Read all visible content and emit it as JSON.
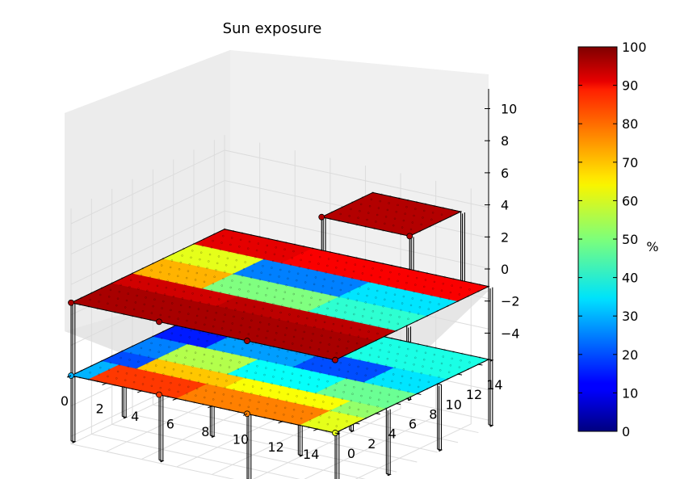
{
  "chart_data": {
    "type": "scatter",
    "projection": "3d",
    "title": "Sun exposure",
    "xlabel": "",
    "ylabel": "",
    "zlabel": "",
    "xlim": [
      0,
      15
    ],
    "ylim": [
      0,
      15
    ],
    "zlim": [
      -4.5,
      11
    ],
    "x_ticks": [
      0,
      2,
      4,
      6,
      8,
      10,
      12,
      14
    ],
    "y_ticks": [
      0,
      2,
      4,
      6,
      8,
      10,
      12,
      14
    ],
    "z_ticks": [
      -4,
      -2,
      0,
      2,
      4,
      6,
      8,
      10
    ],
    "x_tick_labels": [
      "0",
      "2",
      "4",
      "6",
      "8",
      "10",
      "12",
      "14"
    ],
    "y_tick_labels": [
      "0",
      "2",
      "4",
      "6",
      "8",
      "10",
      "12",
      "14"
    ],
    "z_tick_labels": [
      "−4",
      "−2",
      "0",
      "2",
      "4",
      "6",
      "8",
      "10"
    ],
    "colorbar": {
      "label": "%",
      "range": [
        0,
        100
      ],
      "ticks": [
        0,
        10,
        20,
        30,
        40,
        50,
        60,
        70,
        80,
        90,
        100
      ],
      "tick_labels": [
        "0",
        "10",
        "20",
        "30",
        "40",
        "50",
        "60",
        "70",
        "80",
        "90",
        "100"
      ],
      "colormap": "jet"
    },
    "grid": true,
    "floors": [
      {
        "level": 0,
        "z": 0,
        "x_range": [
          0,
          15
        ],
        "y_range": [
          0,
          15
        ],
        "rows": [
          {
            "y": 0,
            "cells": [
              {
                "x0": 0,
                "x1": 1,
                "v": 30
              },
              {
                "x0": 1,
                "x1": 6,
                "v": 82
              },
              {
                "x0": 6,
                "x1": 13,
                "v": 75
              },
              {
                "x0": 13,
                "x1": 15,
                "v": 60
              }
            ]
          },
          {
            "y": 3,
            "cells": [
              {
                "x0": 0,
                "x1": 2,
                "v": 20
              },
              {
                "x0": 2,
                "x1": 7,
                "v": 68
              },
              {
                "x0": 7,
                "x1": 13,
                "v": 62
              },
              {
                "x0": 13,
                "x1": 15,
                "v": 52
              }
            ]
          },
          {
            "y": 5,
            "cells": [
              {
                "x0": 0,
                "x1": 2,
                "v": 25
              },
              {
                "x0": 2,
                "x1": 6,
                "v": 55
              },
              {
                "x0": 6,
                "x1": 11,
                "v": 38
              },
              {
                "x0": 11,
                "x1": 15,
                "v": 48
              }
            ]
          },
          {
            "y": 8,
            "cells": [
              {
                "x0": 0,
                "x1": 3,
                "v": 15
              },
              {
                "x0": 3,
                "x1": 8,
                "v": 28
              },
              {
                "x0": 8,
                "x1": 12,
                "v": 20
              },
              {
                "x0": 12,
                "x1": 15,
                "v": 35
              }
            ]
          },
          {
            "y": 11,
            "cells": [
              {
                "x0": 0,
                "x1": 3,
                "v": 45
              },
              {
                "x0": 3,
                "x1": 9,
                "v": 58
              },
              {
                "x0": 9,
                "x1": 15,
                "v": 40
              }
            ]
          },
          {
            "y": 15,
            "cells": [
              {
                "x0": 0,
                "x1": 5,
                "v": 55
              },
              {
                "x0": 5,
                "x1": 11,
                "v": 50
              },
              {
                "x0": 11,
                "x1": 15,
                "v": 40
              }
            ]
          }
        ]
      },
      {
        "level": 1,
        "z": 4.8,
        "x_range": [
          0,
          15
        ],
        "y_range": [
          0,
          15
        ],
        "rows": [
          {
            "y": 0,
            "cells": [
              {
                "x0": 0,
                "x1": 15,
                "v": 96
              }
            ]
          },
          {
            "y": 4,
            "cells": [
              {
                "x0": 0,
                "x1": 6,
                "v": 92
              },
              {
                "x0": 6,
                "x1": 15,
                "v": 94
              }
            ]
          },
          {
            "y": 6,
            "cells": [
              {
                "x0": 0,
                "x1": 4,
                "v": 70
              },
              {
                "x0": 4,
                "x1": 10,
                "v": 50
              },
              {
                "x0": 10,
                "x1": 15,
                "v": 42
              }
            ]
          },
          {
            "y": 9,
            "cells": [
              {
                "x0": 0,
                "x1": 4,
                "v": 60
              },
              {
                "x0": 4,
                "x1": 10,
                "v": 25
              },
              {
                "x0": 10,
                "x1": 15,
                "v": 35
              }
            ]
          },
          {
            "y": 12,
            "cells": [
              {
                "x0": 0,
                "x1": 5,
                "v": 90
              },
              {
                "x0": 5,
                "x1": 15,
                "v": 88
              }
            ]
          },
          {
            "y": 15,
            "cells": [
              {
                "x0": 0,
                "x1": 7,
                "v": 82
              },
              {
                "x0": 7,
                "x1": 12,
                "v": 65
              },
              {
                "x0": 12,
                "x1": 15,
                "v": 50
              }
            ]
          }
        ]
      },
      {
        "level": 2,
        "z": 9.8,
        "x_range": [
          9,
          14
        ],
        "y_range": [
          9,
          14
        ],
        "rows": [
          {
            "y": 9,
            "cells": [
              {
                "x0": 9,
                "x1": 14,
                "v": 95
              }
            ]
          },
          {
            "y": 14,
            "cells": [
              {
                "x0": 9,
                "x1": 14,
                "v": 93
              }
            ]
          }
        ]
      }
    ]
  }
}
